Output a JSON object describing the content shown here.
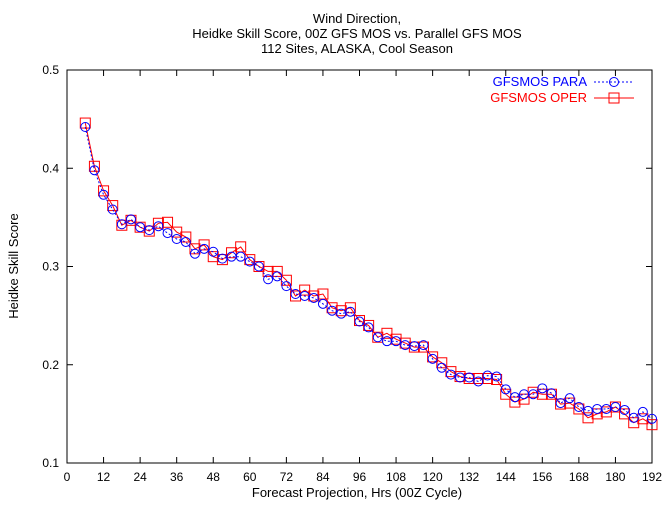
{
  "chart_data": {
    "type": "line",
    "title": [
      "Wind Direction,",
      "Heidke Skill Score, 00Z GFS MOS vs. Parallel GFS MOS",
      "112 Sites, ALASKA, Cool Season"
    ],
    "xlabel": "Forecast Projection, Hrs (00Z Cycle)",
    "ylabel": "Heidke Skill Score",
    "xlim": [
      0,
      192
    ],
    "ylim": [
      0.1,
      0.5
    ],
    "xticks": [
      0,
      12,
      24,
      36,
      48,
      60,
      72,
      84,
      96,
      108,
      120,
      132,
      144,
      156,
      168,
      180,
      192
    ],
    "yticks": [
      0.1,
      0.2,
      0.3,
      0.4,
      0.5
    ],
    "ytick_labels": [
      "0.1",
      "0.2",
      "0.3",
      "0.4",
      "0.5"
    ],
    "grid": false,
    "legend_position": "top-right",
    "x": [
      6,
      9,
      12,
      15,
      18,
      21,
      24,
      27,
      30,
      33,
      36,
      39,
      42,
      45,
      48,
      51,
      54,
      57,
      60,
      63,
      66,
      69,
      72,
      75,
      78,
      81,
      84,
      87,
      90,
      93,
      96,
      99,
      102,
      105,
      108,
      111,
      114,
      117,
      120,
      123,
      126,
      129,
      132,
      135,
      138,
      141,
      144,
      147,
      150,
      153,
      156,
      159,
      162,
      165,
      168,
      171,
      174,
      177,
      180,
      183,
      186,
      189,
      192
    ],
    "series": [
      {
        "name": "GFSMOS PARA",
        "color": "#0000ff",
        "marker": "circle",
        "dash": "dotted",
        "values": [
          0.442,
          0.398,
          0.373,
          0.358,
          0.343,
          0.348,
          0.34,
          0.337,
          0.341,
          0.334,
          0.328,
          0.325,
          0.313,
          0.318,
          0.315,
          0.308,
          0.31,
          0.31,
          0.305,
          0.3,
          0.287,
          0.29,
          0.28,
          0.272,
          0.27,
          0.268,
          0.262,
          0.255,
          0.252,
          0.254,
          0.244,
          0.238,
          0.228,
          0.224,
          0.224,
          0.22,
          0.219,
          0.22,
          0.206,
          0.197,
          0.19,
          0.187,
          0.187,
          0.183,
          0.189,
          0.188,
          0.175,
          0.167,
          0.17,
          0.17,
          0.176,
          0.171,
          0.161,
          0.166,
          0.157,
          0.153,
          0.155,
          0.155,
          0.157,
          0.154,
          0.146,
          0.152,
          0.145
        ]
      },
      {
        "name": "GFSMOS OPER",
        "color": "#ff0000",
        "marker": "square",
        "dash": "solid",
        "values": [
          0.446,
          0.402,
          0.377,
          0.362,
          0.342,
          0.347,
          0.34,
          0.336,
          0.344,
          0.345,
          0.335,
          0.33,
          0.318,
          0.322,
          0.31,
          0.307,
          0.314,
          0.32,
          0.307,
          0.3,
          0.295,
          0.295,
          0.286,
          0.27,
          0.276,
          0.27,
          0.272,
          0.258,
          0.255,
          0.258,
          0.245,
          0.24,
          0.228,
          0.232,
          0.226,
          0.222,
          0.218,
          0.218,
          0.208,
          0.202,
          0.193,
          0.188,
          0.186,
          0.186,
          0.186,
          0.185,
          0.17,
          0.162,
          0.165,
          0.172,
          0.17,
          0.17,
          0.16,
          0.161,
          0.155,
          0.146,
          0.15,
          0.152,
          0.157,
          0.15,
          0.141,
          0.145,
          0.139
        ]
      }
    ]
  }
}
